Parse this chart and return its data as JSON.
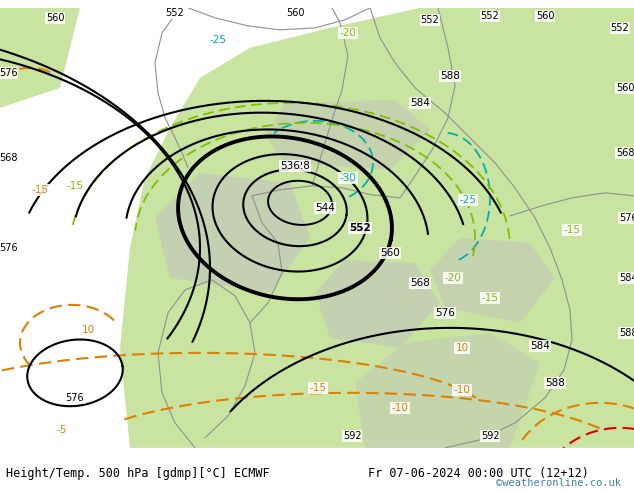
{
  "title_left": "Height/Temp. 500 hPa [gdmp][°C] ECMWF",
  "title_right": "Fr 07-06-2024 00:00 UTC (12+12)",
  "watermark": "©weatheronline.co.uk",
  "figsize": [
    6.34,
    4.9
  ],
  "dpi": 100,
  "bg_green": "#c8e4a0",
  "bg_gray": "#c0c0c0",
  "bg_sea": "#dcdcdc",
  "c_black": "#000000",
  "c_cyan": "#00b0b0",
  "c_green": "#80c000",
  "c_orange": "#e08000",
  "c_red": "#e00000",
  "c_blue": "#4080c0",
  "c_border": "#909090"
}
